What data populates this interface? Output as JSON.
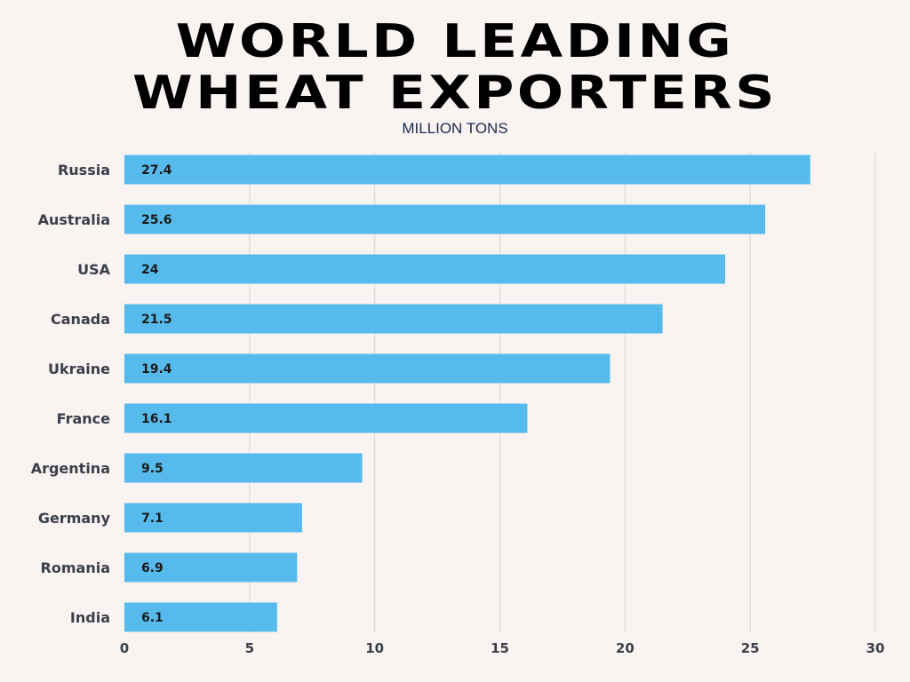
{
  "header": {
    "title_line1": "WORLD LEADING",
    "title_line2": "WHEAT EXPORTERS",
    "subtitle": "MILLION TONS"
  },
  "colors": {
    "bar": "#56bbec",
    "background": "#f9f3f1",
    "grid": "#d9d4d2"
  },
  "chart_data": {
    "type": "bar",
    "orientation": "horizontal",
    "title": "WORLD LEADING WHEAT EXPORTERS",
    "subtitle": "MILLION TONS",
    "xlabel": "",
    "ylabel": "",
    "categories": [
      "Russia",
      "Australia",
      "USA",
      "Canada",
      "Ukraine",
      "France",
      "Argentina",
      "Germany",
      "Romania",
      "India"
    ],
    "values": [
      27.4,
      25.6,
      24,
      21.5,
      19.4,
      16.1,
      9.5,
      7.1,
      6.9,
      6.1
    ],
    "value_labels": [
      "27.4",
      "25.6",
      "24",
      "21.5",
      "19.4",
      "16.1",
      "9.5",
      "7.1",
      "6.9",
      "6.1"
    ],
    "xlim": [
      0,
      30
    ],
    "xticks": [
      "0",
      "5",
      "10",
      "15",
      "20",
      "25",
      "30"
    ],
    "grid": true,
    "legend": "none"
  }
}
